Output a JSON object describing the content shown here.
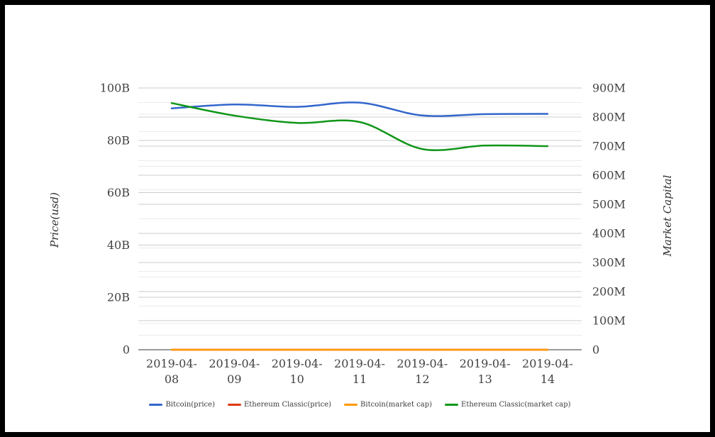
{
  "frame": {
    "border_color": "#000000",
    "background": "#ffffff"
  },
  "chart_data": {
    "type": "line",
    "x_categories": [
      "2019-04-08",
      "2019-04-09",
      "2019-04-10",
      "2019-04-11",
      "2019-04-12",
      "2019-04-13",
      "2019-04-14"
    ],
    "left_axis": {
      "title": "Price(usd)",
      "min": 0,
      "max": 100,
      "tick_step": 20,
      "tick_labels": [
        "0",
        "20B",
        "40B",
        "60B",
        "80B",
        "100B"
      ]
    },
    "right_axis": {
      "title": "Market Capital",
      "min": 0,
      "max": 900,
      "tick_step": 100,
      "tick_labels": [
        "0",
        "100M",
        "200M",
        "300M",
        "400M",
        "500M",
        "600M",
        "700M",
        "800M",
        "900M"
      ]
    },
    "series": [
      {
        "name": "Bitcoin(price)",
        "color": "#3366cc",
        "axis": "left",
        "unit": "B",
        "values": [
          92.2,
          93.7,
          92.8,
          94.4,
          89.5,
          90.0,
          90.1
        ]
      },
      {
        "name": "Ethereum Classic(price)",
        "color": "#dc3912",
        "axis": "left",
        "unit": "B",
        "values": [
          0,
          0,
          0,
          0,
          0,
          0,
          0
        ]
      },
      {
        "name": "Bitcoin(market cap)",
        "color": "#ff9900",
        "axis": "right",
        "unit": "M",
        "values": [
          0,
          0,
          0,
          0,
          0,
          0,
          0
        ]
      },
      {
        "name": "Ethereum Classic(market cap)",
        "color": "#109618",
        "axis": "right",
        "unit": "M",
        "values": [
          848,
          805,
          780,
          783,
          690,
          702,
          700
        ]
      }
    ],
    "grid": {
      "major_color": "#cccccc",
      "minor_color": "#ebebeb",
      "x_axis_color": "#333333"
    },
    "legend_position": "bottom",
    "text_color": "#424242"
  }
}
